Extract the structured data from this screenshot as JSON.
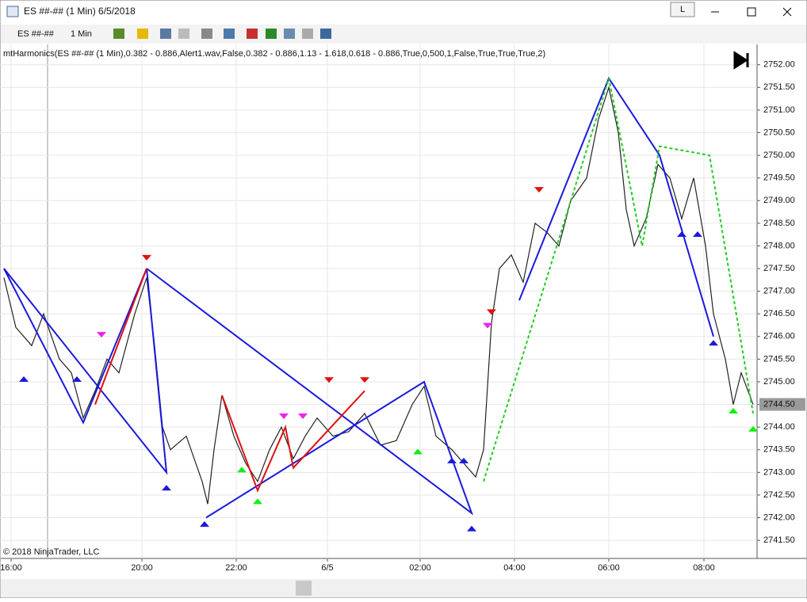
{
  "window": {
    "title": "ES ##-## (1 Min)  6/5/2018",
    "badge": "L"
  },
  "toolbar": {
    "instrument": "ES ##-##",
    "interval": "1 Min"
  },
  "chart_data": {
    "type": "line",
    "subtitle": "mtHarmonics(ES ##-## (1 Min),0.382 - 0.886,Alert1.wav,False,0.382 - 0.886,1.13 - 1.618,0.618 - 0.886,True,0,500,1,False,True,True,True,2)",
    "footer": "© 2018 NinjaTrader, LLC",
    "current_price": {
      "value": 2744.5,
      "label": "2744.50"
    },
    "color": "#222222",
    "x": [
      -9,
      6,
      26,
      41,
      61,
      76,
      91,
      106,
      121,
      136,
      156,
      171,
      181,
      191,
      201,
      221,
      241,
      248,
      256,
      266,
      281,
      296,
      311,
      326,
      341,
      356,
      371,
      386,
      406,
      426,
      446,
      466,
      486,
      506,
      521,
      536,
      556,
      571,
      586,
      596,
      606,
      616,
      631,
      646,
      661,
      676,
      691,
      706,
      726,
      741,
      754,
      766,
      776,
      786,
      801,
      816,
      831,
      846,
      861,
      876,
      886,
      901,
      911,
      921,
      936
    ],
    "values": [
      2747.3,
      2746.2,
      2745.8,
      2746.5,
      2745.5,
      2745.2,
      2744.2,
      2744.8,
      2745.5,
      2745.2,
      2746.5,
      2747.3,
      2745.8,
      2744.0,
      2743.5,
      2743.8,
      2742.8,
      2742.3,
      2743.5,
      2744.7,
      2743.8,
      2743.2,
      2742.8,
      2743.5,
      2744.0,
      2743.3,
      2743.8,
      2744.2,
      2743.8,
      2743.9,
      2744.3,
      2743.6,
      2743.7,
      2744.5,
      2744.9,
      2743.8,
      2743.5,
      2743.2,
      2742.9,
      2743.5,
      2746.3,
      2747.5,
      2747.8,
      2747.2,
      2748.5,
      2748.3,
      2748.0,
      2749.0,
      2749.5,
      2750.8,
      2751.5,
      2750.5,
      2748.8,
      2748.0,
      2748.6,
      2749.8,
      2749.5,
      2748.6,
      2749.5,
      2748.0,
      2746.5,
      2745.5,
      2744.5,
      2745.2,
      2744.5
    ],
    "patterns": [
      {
        "color": "#1a1adc",
        "dashed": false,
        "x": [
          -9,
          91,
          171,
          196,
          -9
        ],
        "values": [
          2747.5,
          2744.1,
          2747.5,
          2743.0,
          2747.5
        ]
      },
      {
        "color": "#1a1adc",
        "dashed": false,
        "x": [
          246,
          521,
          581,
          171
        ],
        "values": [
          2742.0,
          2745.0,
          2742.1,
          2747.5
        ]
      },
      {
        "color": "#1a1adc",
        "dashed": false,
        "x": [
          641,
          754,
          818,
          886
        ],
        "values": [
          2746.8,
          2751.7,
          2750.0,
          2746.0
        ]
      },
      {
        "color": "#e01010",
        "dashed": false,
        "x": [
          171,
          106
        ],
        "values": [
          2747.5,
          2744.5
        ]
      },
      {
        "color": "#e01010",
        "dashed": false,
        "x": [
          266,
          311,
          346,
          356,
          446
        ],
        "values": [
          2744.7,
          2742.6,
          2744.0,
          2743.1,
          2744.8
        ]
      },
      {
        "color": "#22cc22",
        "dashed": true,
        "x": [
          596,
          754,
          796,
          818,
          881,
          936
        ],
        "values": [
          2742.8,
          2751.7,
          2748.0,
          2750.2,
          2750.0,
          2744.3
        ]
      }
    ],
    "markers": [
      {
        "color": "#1a1adc",
        "dir": "up",
        "x": [
          16,
          83,
          196,
          244,
          556,
          571,
          581,
          846,
          866,
          886
        ],
        "values": [
          2745.0,
          2745.0,
          2742.6,
          2741.8,
          2743.2,
          2743.2,
          2741.7,
          2748.2,
          2748.2,
          2745.8
        ]
      },
      {
        "color": "#11ee11",
        "dir": "up",
        "x": [
          291,
          311,
          513,
          911,
          936
        ],
        "values": [
          2743.0,
          2742.3,
          2743.4,
          2744.3,
          2743.9
        ]
      },
      {
        "color": "#e01010",
        "dir": "down",
        "x": [
          171,
          446,
          401,
          666,
          606
        ],
        "values": [
          2747.8,
          2745.1,
          2745.1,
          2749.3,
          2746.6
        ]
      },
      {
        "color": "#ee22ee",
        "dir": "down",
        "x": [
          114,
          344,
          368,
          601
        ],
        "values": [
          2746.1,
          2744.3,
          2744.3,
          2746.3
        ]
      }
    ],
    "xlim": [
      -14,
      941
    ],
    "xticks": [
      {
        "value": 0,
        "label": "16:00"
      },
      {
        "value": 165,
        "label": "20:00"
      },
      {
        "value": 284,
        "label": "22:00"
      },
      {
        "value": 399,
        "label": "6/5"
      },
      {
        "value": 516,
        "label": "02:00"
      },
      {
        "value": 635,
        "label": "04:00"
      },
      {
        "value": 754,
        "label": "06:00"
      },
      {
        "value": 874,
        "label": "08:00"
      }
    ],
    "ylim": [
      2741.1,
      2752.45
    ],
    "yticks": [
      {
        "value": 2741.5,
        "label": "2741.50"
      },
      {
        "value": 2742,
        "label": "2742.00"
      },
      {
        "value": 2742.5,
        "label": "2742.50"
      },
      {
        "value": 2743,
        "label": "2743.00"
      },
      {
        "value": 2743.5,
        "label": "2743.50"
      },
      {
        "value": 2744,
        "label": "2744.00"
      },
      {
        "value": 2744.5,
        "label": "2744.50"
      },
      {
        "value": 2745,
        "label": "2745.00"
      },
      {
        "value": 2745.5,
        "label": "2745.50"
      },
      {
        "value": 2746,
        "label": "2746.00"
      },
      {
        "value": 2746.5,
        "label": "2746.50"
      },
      {
        "value": 2747,
        "label": "2747.00"
      },
      {
        "value": 2747.5,
        "label": "2747.50"
      },
      {
        "value": 2748,
        "label": "2748.00"
      },
      {
        "value": 2748.5,
        "label": "2748.50"
      },
      {
        "value": 2749,
        "label": "2749.00"
      },
      {
        "value": 2749.5,
        "label": "2749.50"
      },
      {
        "value": 2750,
        "label": "2750.00"
      },
      {
        "value": 2750.5,
        "label": "2750.50"
      },
      {
        "value": 2751,
        "label": "2751.00"
      },
      {
        "value": 2751.5,
        "label": "2751.50"
      },
      {
        "value": 2752,
        "label": "2752.00"
      }
    ],
    "grid": true
  }
}
